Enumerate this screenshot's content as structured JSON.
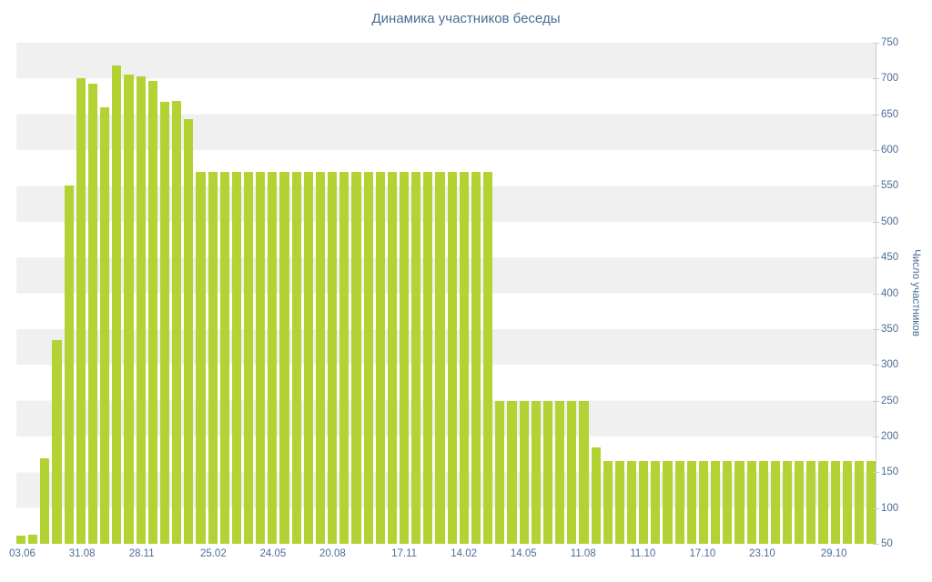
{
  "chart_data": {
    "type": "bar",
    "title": "Динамика участников беседы",
    "xlabel": "",
    "ylabel": "Число участников",
    "ylim": [
      50,
      750
    ],
    "y_tick_step": 50,
    "y_ticks": [
      750,
      700,
      650,
      600,
      550,
      500,
      450,
      400,
      350,
      300,
      250,
      200,
      150,
      100,
      50
    ],
    "grid": "striped-horizontal-bands",
    "legend": "none",
    "values": [
      62,
      63,
      170,
      335,
      550,
      700,
      693,
      660,
      718,
      705,
      703,
      697,
      668,
      669,
      643,
      570,
      570,
      570,
      570,
      570,
      570,
      570,
      570,
      570,
      570,
      570,
      570,
      570,
      570,
      570,
      570,
      570,
      570,
      570,
      570,
      570,
      570,
      570,
      570,
      570,
      250,
      250,
      250,
      250,
      250,
      250,
      250,
      250,
      185,
      165,
      165,
      165,
      165,
      165,
      165,
      165,
      165,
      165,
      165,
      165,
      165,
      165,
      165,
      165,
      165,
      165,
      165,
      165,
      165,
      165,
      165,
      165
    ],
    "x_ticks": [
      {
        "label": "03.06",
        "bar": 0
      },
      {
        "label": "31.08",
        "bar": 5
      },
      {
        "label": "28.11",
        "bar": 10
      },
      {
        "label": "25.02",
        "bar": 16
      },
      {
        "label": "24.05",
        "bar": 21
      },
      {
        "label": "20.08",
        "bar": 26
      },
      {
        "label": "17.11",
        "bar": 32
      },
      {
        "label": "14.02",
        "bar": 37
      },
      {
        "label": "14.05",
        "bar": 42
      },
      {
        "label": "11.08",
        "bar": 47
      },
      {
        "label": "11.10",
        "bar": 52
      },
      {
        "label": "17.10",
        "bar": 57
      },
      {
        "label": "23.10",
        "bar": 62
      },
      {
        "label": "29.10",
        "bar": 68
      }
    ],
    "colors": {
      "bar": "#b3d335",
      "stripe_a": "#f0f0f0",
      "stripe_b": "#ffffff",
      "text": "#4a6d96",
      "axis": "#c6cdd4"
    }
  }
}
